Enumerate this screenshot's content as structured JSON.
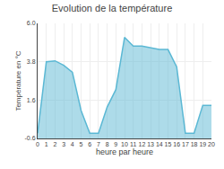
{
  "chart_data": {
    "type": "area",
    "title": "Evolution de la température",
    "xlabel": "heure par heure",
    "ylabel": "Température en °C",
    "x": [
      0,
      1,
      2,
      3,
      4,
      5,
      6,
      7,
      8,
      9,
      10,
      11,
      12,
      13,
      14,
      15,
      16,
      17,
      18,
      19,
      20
    ],
    "values": [
      -0.3,
      3.8,
      3.85,
      3.6,
      3.2,
      1.0,
      -0.3,
      -0.3,
      1.2,
      2.2,
      5.2,
      4.7,
      4.7,
      4.6,
      4.5,
      4.5,
      3.5,
      -0.3,
      -0.3,
      1.3,
      1.3
    ],
    "color": "#5bb8d4",
    "xlim": [
      0,
      20
    ],
    "xticks": [
      0,
      1,
      2,
      3,
      4,
      5,
      6,
      7,
      8,
      9,
      10,
      11,
      12,
      13,
      14,
      15,
      16,
      17,
      18,
      19,
      20
    ],
    "ylim": [
      -0.6,
      6.0
    ],
    "yticks": [
      -0.6,
      1.6,
      3.8,
      {
        "value": 6.0,
        "label": "6.0"
      }
    ],
    "grid": true
  }
}
